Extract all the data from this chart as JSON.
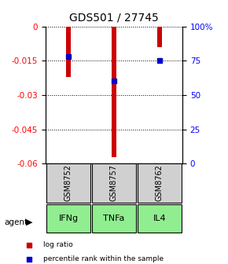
{
  "title": "GDS501 / 27745",
  "samples": [
    "GSM8752",
    "GSM8757",
    "GSM8762"
  ],
  "agents": [
    "IFNg",
    "TNFa",
    "IL4"
  ],
  "log_ratios": [
    -0.022,
    -0.057,
    -0.009
  ],
  "percentile_ranks": [
    78,
    60,
    75
  ],
  "ylim_left": [
    -0.06,
    0.0
  ],
  "ylim_right": [
    0,
    100
  ],
  "left_ticks": [
    0,
    -0.015,
    -0.03,
    -0.045,
    -0.06
  ],
  "right_ticks": [
    0,
    25,
    50,
    75,
    100
  ],
  "bar_color": "#cc0000",
  "dot_color": "#0000cc",
  "sample_box_color": "#d0d0d0",
  "agent_box_color": "#90ee90",
  "background_color": "#ffffff",
  "title_fontsize": 10,
  "bar_width": 0.12,
  "legend_bar_label": "log ratio",
  "legend_dot_label": "percentile rank within the sample"
}
